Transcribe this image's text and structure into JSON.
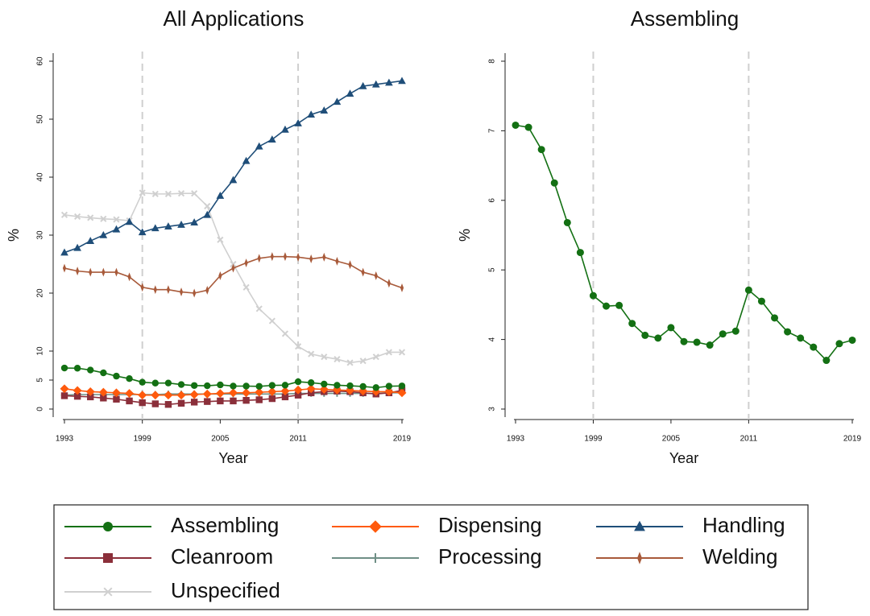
{
  "chart_data": [
    {
      "type": "line",
      "title": "All Applications",
      "x_label": "Year",
      "y_label": "%",
      "x": [
        1993,
        1994,
        1995,
        1996,
        1997,
        1998,
        1999,
        2000,
        2001,
        2002,
        2003,
        2004,
        2005,
        2006,
        2007,
        2008,
        2009,
        2010,
        2011,
        2012,
        2013,
        2014,
        2015,
        2016,
        2017,
        2018,
        2019
      ],
      "xlim": [
        1993,
        2019
      ],
      "xticks": [
        1993,
        1999,
        2005,
        2011,
        2019
      ],
      "ylim": [
        0,
        60
      ],
      "yticks": [
        0,
        5,
        10,
        20,
        30,
        40,
        50,
        60
      ],
      "vlines": [
        1999,
        2011
      ],
      "series": [
        {
          "name": "Assembling",
          "color": "#137013",
          "marker": "circle",
          "values": [
            7.08,
            7.05,
            6.73,
            6.25,
            5.68,
            5.25,
            4.63,
            4.48,
            4.49,
            4.23,
            4.06,
            4.02,
            4.17,
            3.97,
            3.96,
            3.92,
            4.08,
            4.12,
            4.71,
            4.55,
            4.31,
            4.11,
            4.02,
            3.89,
            3.7,
            3.94,
            3.99
          ]
        },
        {
          "name": "Dispensing",
          "color": "#ff5a0d",
          "marker": "diamond",
          "values": [
            3.5,
            3.2,
            3.0,
            2.9,
            2.8,
            2.7,
            2.4,
            2.4,
            2.4,
            2.4,
            2.5,
            2.6,
            2.7,
            2.8,
            2.8,
            2.9,
            3.0,
            3.1,
            3.3,
            3.5,
            3.4,
            3.3,
            3.2,
            3.1,
            3.0,
            3.0,
            2.8
          ]
        },
        {
          "name": "Handling",
          "color": "#1f4e79",
          "marker": "triangle",
          "values": [
            27,
            27.8,
            29,
            30,
            31,
            32.3,
            30.5,
            31.2,
            31.5,
            31.8,
            32.2,
            33.5,
            36.8,
            39.5,
            42.8,
            45.3,
            46.5,
            48.2,
            49.3,
            50.8,
            51.5,
            53,
            54.4,
            55.7,
            56,
            56.3,
            56.6
          ]
        },
        {
          "name": "Cleanroom",
          "color": "#8b2f3a",
          "marker": "square",
          "values": [
            2.3,
            2.2,
            2.1,
            1.9,
            1.7,
            1.4,
            1.1,
            0.9,
            0.8,
            1.0,
            1.2,
            1.3,
            1.4,
            1.4,
            1.5,
            1.6,
            1.8,
            2.1,
            2.4,
            2.8,
            3.0,
            3.1,
            3.0,
            2.8,
            2.6,
            2.8,
            3.2
          ]
        },
        {
          "name": "Processing",
          "color": "#6f8f86",
          "marker": "plus",
          "values": [
            2.4,
            2.5,
            2.5,
            2.5,
            2.5,
            2.5,
            2.5,
            2.5,
            2.6,
            2.6,
            2.6,
            2.6,
            2.6,
            2.6,
            2.6,
            2.6,
            2.6,
            2.6,
            2.7,
            2.7,
            2.7,
            2.7,
            2.7,
            2.7,
            2.7,
            2.8,
            2.8
          ]
        },
        {
          "name": "Welding",
          "color": "#a85a3a",
          "marker": "spike",
          "values": [
            24.3,
            23.8,
            23.6,
            23.6,
            23.6,
            22.8,
            21,
            20.6,
            20.6,
            20.2,
            20,
            20.5,
            23,
            24.3,
            25.2,
            26,
            26.3,
            26.3,
            26.2,
            25.9,
            26.2,
            25.5,
            24.9,
            23.6,
            23,
            21.7,
            20.9
          ]
        },
        {
          "name": "Unspecified",
          "color": "#d0d0d0",
          "marker": "x",
          "values": [
            33.5,
            33.2,
            33,
            32.8,
            32.7,
            32.5,
            37.3,
            37.1,
            37.1,
            37.2,
            37.2,
            35,
            29.2,
            25,
            21,
            17.3,
            15.2,
            13,
            10.8,
            9.5,
            9,
            8.6,
            8,
            8.3,
            9,
            9.8,
            9.8
          ]
        }
      ]
    },
    {
      "type": "line",
      "title": "Assembling",
      "x_label": "Year",
      "y_label": "%",
      "x": [
        1993,
        1994,
        1995,
        1996,
        1997,
        1998,
        1999,
        2000,
        2001,
        2002,
        2003,
        2004,
        2005,
        2006,
        2007,
        2008,
        2009,
        2010,
        2011,
        2012,
        2013,
        2014,
        2015,
        2016,
        2017,
        2018,
        2019
      ],
      "xlim": [
        1993,
        2019
      ],
      "xticks": [
        1993,
        1999,
        2005,
        2011,
        2019
      ],
      "ylim": [
        3,
        8
      ],
      "yticks": [
        3,
        4,
        5,
        6,
        7,
        8
      ],
      "vlines": [
        1999,
        2011
      ],
      "series": [
        {
          "color": "#137013",
          "marker": "circle",
          "values": [
            7.08,
            7.05,
            6.73,
            6.25,
            5.68,
            5.25,
            4.63,
            4.48,
            4.49,
            4.23,
            4.06,
            4.02,
            4.17,
            3.97,
            3.96,
            3.92,
            4.08,
            4.12,
            4.71,
            4.55,
            4.31,
            4.11,
            4.02,
            3.89,
            3.7,
            3.94,
            3.99
          ]
        }
      ]
    }
  ]
}
